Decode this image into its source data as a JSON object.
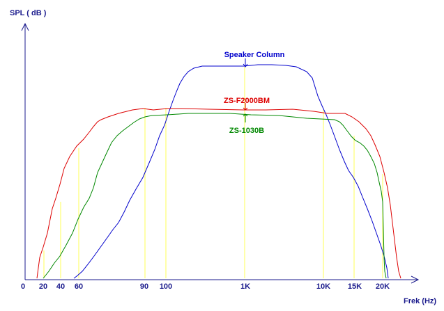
{
  "chart_data": {
    "type": "line",
    "ylabel": "SPL ( dB )",
    "xlabel": "Frek (Hz)",
    "x_ticks": [
      "0",
      "20",
      "40",
      "60",
      "90",
      "100",
      "1K",
      "10K",
      "15K",
      "20K"
    ],
    "grid": "vertical guide lines at 20, 40, 60, 90, 100, 1K, 10K, 15K, 20K",
    "y_ticks": [],
    "colors": {
      "axis": "#1a1a8c",
      "guide": "#ffff55",
      "speaker_column": "#0000cc",
      "zs_f2000bm": "#dd0000",
      "zs_1030b": "#008800"
    },
    "series": [
      {
        "name": "Speaker Column",
        "label": "Speaker Column",
        "color": "#0000cc",
        "points": [
          [
            106,
            400
          ],
          [
            110,
            397
          ],
          [
            118,
            390
          ],
          [
            126,
            380
          ],
          [
            135,
            368
          ],
          [
            145,
            354
          ],
          [
            155,
            340
          ],
          [
            162,
            330
          ],
          [
            170,
            320
          ],
          [
            178,
            305
          ],
          [
            186,
            288
          ],
          [
            195,
            272
          ],
          [
            205,
            255
          ],
          [
            214,
            234
          ],
          [
            222,
            215
          ],
          [
            229,
            195
          ],
          [
            236,
            180
          ],
          [
            242,
            162
          ],
          [
            248,
            145
          ],
          [
            253,
            132
          ],
          [
            258,
            120
          ],
          [
            264,
            110
          ],
          [
            270,
            103
          ],
          [
            278,
            98
          ],
          [
            290,
            95
          ],
          [
            310,
            95
          ],
          [
            330,
            95
          ],
          [
            350,
            95
          ],
          [
            370,
            93
          ],
          [
            390,
            93
          ],
          [
            410,
            94
          ],
          [
            425,
            96
          ],
          [
            440,
            103
          ],
          [
            448,
            112
          ],
          [
            452,
            125
          ],
          [
            456,
            138
          ],
          [
            462,
            152
          ],
          [
            468,
            165
          ],
          [
            474,
            180
          ],
          [
            480,
            196
          ],
          [
            487,
            215
          ],
          [
            494,
            232
          ],
          [
            500,
            245
          ],
          [
            507,
            255
          ],
          [
            514,
            268
          ],
          [
            520,
            283
          ],
          [
            527,
            300
          ],
          [
            534,
            318
          ],
          [
            540,
            335
          ],
          [
            546,
            352
          ],
          [
            551,
            368
          ],
          [
            555,
            385
          ],
          [
            557,
            400
          ]
        ]
      },
      {
        "name": "ZS-F2000BM",
        "label": "ZS-F2000BM",
        "color": "#dd0000",
        "points": [
          [
            53,
            400
          ],
          [
            57,
            370
          ],
          [
            62,
            355
          ],
          [
            68,
            335
          ],
          [
            75,
            300
          ],
          [
            80,
            285
          ],
          [
            86,
            265
          ],
          [
            92,
            242
          ],
          [
            100,
            225
          ],
          [
            110,
            210
          ],
          [
            120,
            200
          ],
          [
            128,
            190
          ],
          [
            134,
            182
          ],
          [
            140,
            175
          ],
          [
            145,
            172
          ],
          [
            155,
            168
          ],
          [
            170,
            163
          ],
          [
            190,
            158
          ],
          [
            205,
            156
          ],
          [
            220,
            158
          ],
          [
            240,
            156
          ],
          [
            260,
            156
          ],
          [
            300,
            157
          ],
          [
            350,
            158
          ],
          [
            380,
            158
          ],
          [
            420,
            157
          ],
          [
            450,
            160
          ],
          [
            470,
            163
          ],
          [
            495,
            163
          ],
          [
            505,
            168
          ],
          [
            515,
            175
          ],
          [
            525,
            185
          ],
          [
            532,
            195
          ],
          [
            538,
            208
          ],
          [
            545,
            225
          ],
          [
            551,
            248
          ],
          [
            556,
            270
          ],
          [
            560,
            295
          ],
          [
            563,
            320
          ],
          [
            566,
            345
          ],
          [
            569,
            370
          ],
          [
            572,
            390
          ],
          [
            575,
            400
          ]
        ]
      },
      {
        "name": "ZS-1030B",
        "label": "ZS-1030B",
        "color": "#008800",
        "points": [
          [
            62,
            400
          ],
          [
            70,
            390
          ],
          [
            78,
            378
          ],
          [
            86,
            368
          ],
          [
            95,
            352
          ],
          [
            104,
            335
          ],
          [
            112,
            315
          ],
          [
            120,
            298
          ],
          [
            128,
            285
          ],
          [
            134,
            270
          ],
          [
            140,
            248
          ],
          [
            146,
            235
          ],
          [
            152,
            222
          ],
          [
            160,
            205
          ],
          [
            168,
            195
          ],
          [
            176,
            188
          ],
          [
            184,
            182
          ],
          [
            192,
            176
          ],
          [
            200,
            171
          ],
          [
            208,
            168
          ],
          [
            218,
            166
          ],
          [
            240,
            165
          ],
          [
            270,
            163
          ],
          [
            300,
            163
          ],
          [
            330,
            163
          ],
          [
            360,
            165
          ],
          [
            400,
            166
          ],
          [
            440,
            170
          ],
          [
            480,
            172
          ],
          [
            487,
            175
          ],
          [
            492,
            180
          ],
          [
            498,
            188
          ],
          [
            504,
            196
          ],
          [
            510,
            202
          ],
          [
            516,
            205
          ],
          [
            522,
            210
          ],
          [
            527,
            216
          ],
          [
            532,
            225
          ],
          [
            537,
            235
          ],
          [
            541,
            248
          ],
          [
            544,
            262
          ],
          [
            547,
            275
          ],
          [
            549,
            290
          ],
          [
            550,
            330
          ],
          [
            551,
            370
          ],
          [
            552,
            390
          ],
          [
            554,
            400
          ]
        ]
      }
    ]
  }
}
